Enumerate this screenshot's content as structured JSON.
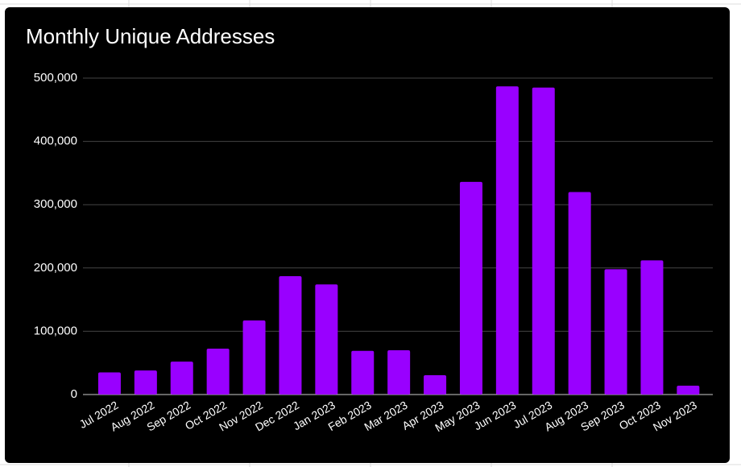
{
  "chart_data": {
    "type": "bar",
    "title": "Monthly Unique Addresses",
    "categories": [
      "Jul 2022",
      "Aug 2022",
      "Sep 2022",
      "Oct 2022",
      "Nov 2022",
      "Dec 2022",
      "Jan 2023",
      "Feb 2023",
      "Mar 2023",
      "Apr 2023",
      "May 2023",
      "Jun 2023",
      "Jul 2023",
      "Aug 2023",
      "Sep 2023",
      "Oct 2023",
      "Nov 2023"
    ],
    "values": [
      35000,
      38000,
      52000,
      72500,
      117000,
      187000,
      174000,
      69000,
      70000,
      30500,
      336000,
      487000,
      485000,
      320000,
      198000,
      212000,
      14000
    ],
    "color": "#9900ff",
    "ylim": [
      0,
      500000
    ],
    "yticks": [
      0,
      {
        "value": 100000,
        "label": "100,000"
      },
      {
        "value": 200000,
        "label": "200,000"
      },
      {
        "value": 300000,
        "label": "300,000"
      },
      {
        "value": 400000,
        "label": "400,000"
      },
      {
        "value": 500000,
        "label": "500,000"
      }
    ],
    "grid": true
  }
}
